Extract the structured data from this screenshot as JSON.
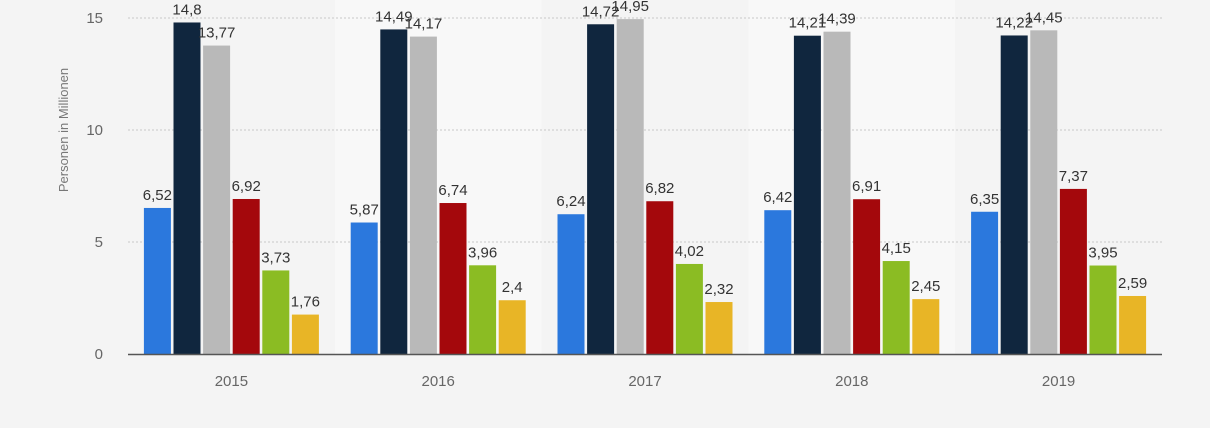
{
  "chart_data": {
    "type": "bar",
    "categories": [
      "2015",
      "2016",
      "2017",
      "2018",
      "2019"
    ],
    "ylabel": "Personen in Millionen",
    "ylim": [
      0,
      15
    ],
    "yticks": [
      "0",
      "5",
      "10",
      "15"
    ],
    "grid": true,
    "series": [
      {
        "color": "#2b78dd",
        "values": [
          6.52,
          5.87,
          6.24,
          6.42,
          6.35
        ],
        "labels": [
          "6,52",
          "5,87",
          "6,24",
          "6,42",
          "6,35"
        ]
      },
      {
        "color": "#10263e",
        "values": [
          14.8,
          14.49,
          14.72,
          14.21,
          14.22
        ],
        "labels": [
          "14,8",
          "14,49",
          "14,72",
          "14,21",
          "14,22"
        ]
      },
      {
        "color": "#b9b9b9",
        "values": [
          13.77,
          14.17,
          14.95,
          14.39,
          14.45
        ],
        "labels": [
          "13,77",
          "14,17",
          "14,95",
          "14,39",
          "14,45"
        ]
      },
      {
        "color": "#a4080c",
        "values": [
          6.92,
          6.74,
          6.82,
          6.91,
          7.37
        ],
        "labels": [
          "6,92",
          "6,74",
          "6,82",
          "6,91",
          "7,37"
        ]
      },
      {
        "color": "#8bbc23",
        "values": [
          3.73,
          3.96,
          4.02,
          4.15,
          3.95
        ],
        "labels": [
          "3,73",
          "3,96",
          "4,02",
          "4,15",
          "3,95"
        ]
      },
      {
        "color": "#e8b526",
        "values": [
          1.76,
          2.4,
          2.32,
          2.45,
          2.59
        ],
        "labels": [
          "1,76",
          "2,4",
          "2,32",
          "2,45",
          "2,59"
        ]
      }
    ]
  }
}
